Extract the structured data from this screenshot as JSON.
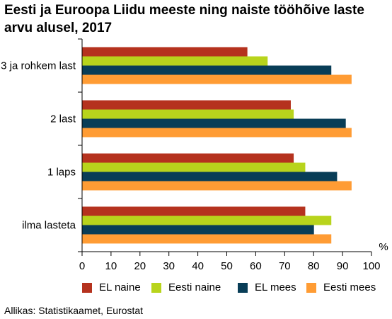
{
  "chart_data": {
    "type": "bar",
    "orientation": "horizontal",
    "title": "Eesti ja Euroopa Liidu meeste ning naiste tööhõive laste arvu alusel, 2017",
    "xlabel": "%",
    "ylabel": "",
    "xlim": [
      0,
      100
    ],
    "xticks": [
      0,
      10,
      20,
      30,
      40,
      50,
      60,
      70,
      80,
      90,
      100
    ],
    "categories": [
      "3 ja rohkem last",
      "2 last",
      "1 laps",
      "ilma lasteta"
    ],
    "series": [
      {
        "name": "EL naine",
        "color": "#b5321e",
        "values": [
          57,
          72,
          73,
          77
        ]
      },
      {
        "name": "Eesti naine",
        "color": "#b8d41c",
        "values": [
          64,
          73,
          77,
          86
        ]
      },
      {
        "name": "EL mees",
        "color": "#083d57",
        "values": [
          86,
          91,
          88,
          80
        ]
      },
      {
        "name": "Eesti mees",
        "color": "#ff9c34",
        "values": [
          93,
          93,
          93,
          86
        ]
      }
    ],
    "grid": false,
    "legend_position": "bottom"
  },
  "source": "Allikas: Statistikaamet, Eurostat"
}
